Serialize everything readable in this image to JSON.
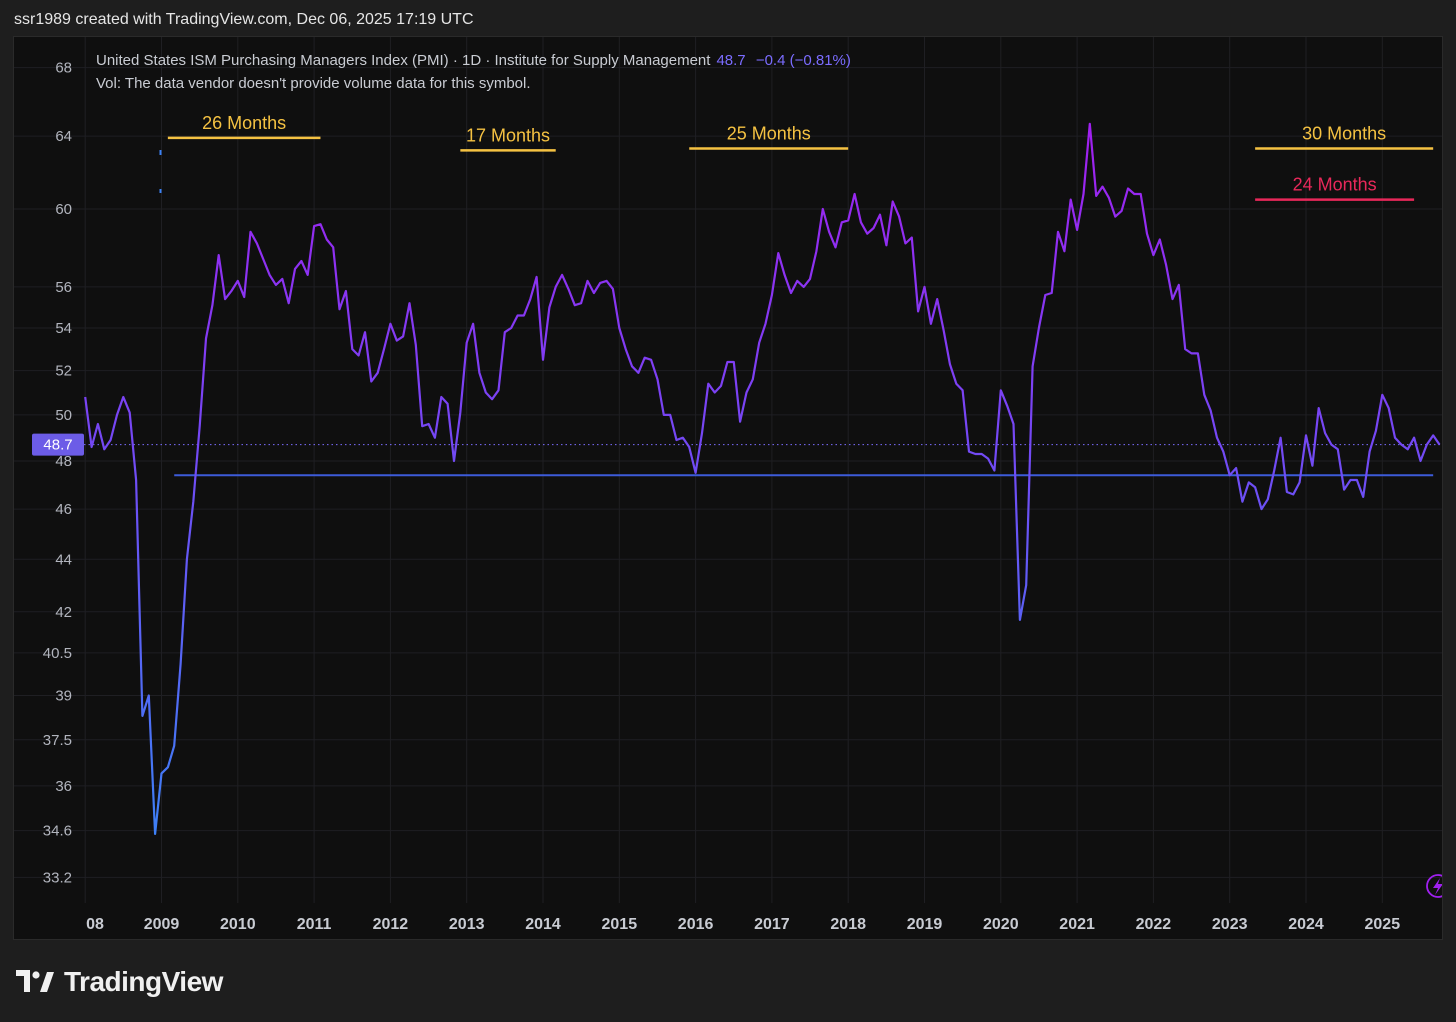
{
  "header": {
    "credit": "ssr1989 created with TradingView.com, Dec 06, 2025 17:19 UTC"
  },
  "legend": {
    "title": "United States ISM Purchasing Managers Index (PMI) · 1D · Institute for Supply Management",
    "last_value": "48.7",
    "change": "−0.4 (−0.81%)",
    "volume_note": "Vol: The data vendor doesn't provide volume data for this symbol."
  },
  "footer": {
    "brand": "TradingView"
  },
  "colors": {
    "background": "#0f0f0f",
    "line_low": "#3b82f6",
    "line_high": "#a020f0",
    "support_line": "#3d5bd9",
    "price_tag": "#6c5ce7",
    "annotation_yellow": "#f5c242",
    "annotation_red": "#e8285a"
  },
  "chart_data": {
    "type": "line",
    "title": "United States ISM Purchasing Managers Index (PMI)",
    "xlabel": "",
    "ylabel": "",
    "scale": "log",
    "ylim": [
      32.2,
      70
    ],
    "x_ticks": [
      "08",
      "2009",
      "2010",
      "2011",
      "2012",
      "2013",
      "2014",
      "2015",
      "2016",
      "2017",
      "2018",
      "2019",
      "2020",
      "2021",
      "2022",
      "2023",
      "2024",
      "2025"
    ],
    "y_ticks": [
      68,
      64,
      60,
      56,
      54,
      52,
      50,
      48,
      46,
      44,
      42,
      40.5,
      39,
      37.5,
      36,
      34.6,
      33.2
    ],
    "last_price_label": "48.7",
    "grid": true,
    "series": [
      {
        "values": [
          [
            "2008-01",
            50.8
          ],
          [
            "2008-02",
            48.6
          ],
          [
            "2008-03",
            49.6
          ],
          [
            "2008-04",
            48.5
          ],
          [
            "2008-05",
            48.9
          ],
          [
            "2008-06",
            50.0
          ],
          [
            "2008-07",
            50.8
          ],
          [
            "2008-08",
            50.1
          ],
          [
            "2008-09",
            47.2
          ],
          [
            "2008-10",
            38.3
          ],
          [
            "2008-11",
            39.0
          ],
          [
            "2008-12",
            34.5
          ],
          [
            "2009-01",
            36.4
          ],
          [
            "2009-02",
            36.6
          ],
          [
            "2009-03",
            37.3
          ],
          [
            "2009-04",
            40.1
          ],
          [
            "2009-05",
            44.0
          ],
          [
            "2009-06",
            46.3
          ],
          [
            "2009-07",
            49.5
          ],
          [
            "2009-08",
            53.5
          ],
          [
            "2009-09",
            55.1
          ],
          [
            "2009-10",
            57.6
          ],
          [
            "2009-11",
            55.4
          ],
          [
            "2009-12",
            55.8
          ],
          [
            "2010-01",
            56.3
          ],
          [
            "2010-02",
            55.5
          ],
          [
            "2010-03",
            58.8
          ],
          [
            "2010-04",
            58.2
          ],
          [
            "2010-05",
            57.4
          ],
          [
            "2010-06",
            56.6
          ],
          [
            "2010-07",
            56.1
          ],
          [
            "2010-08",
            56.4
          ],
          [
            "2010-09",
            55.2
          ],
          [
            "2010-10",
            56.9
          ],
          [
            "2010-11",
            57.3
          ],
          [
            "2010-12",
            56.6
          ],
          [
            "2011-01",
            59.1
          ],
          [
            "2011-02",
            59.2
          ],
          [
            "2011-03",
            58.4
          ],
          [
            "2011-04",
            58.0
          ],
          [
            "2011-05",
            54.9
          ],
          [
            "2011-06",
            55.8
          ],
          [
            "2011-07",
            53.0
          ],
          [
            "2011-08",
            52.7
          ],
          [
            "2011-09",
            53.8
          ],
          [
            "2011-10",
            51.5
          ],
          [
            "2011-11",
            51.9
          ],
          [
            "2011-12",
            53.0
          ],
          [
            "2012-01",
            54.2
          ],
          [
            "2012-02",
            53.4
          ],
          [
            "2012-03",
            53.6
          ],
          [
            "2012-04",
            55.2
          ],
          [
            "2012-05",
            53.2
          ],
          [
            "2012-06",
            49.5
          ],
          [
            "2012-07",
            49.6
          ],
          [
            "2012-08",
            49.0
          ],
          [
            "2012-09",
            50.8
          ],
          [
            "2012-10",
            50.5
          ],
          [
            "2012-11",
            48.0
          ],
          [
            "2012-12",
            50.1
          ],
          [
            "2013-01",
            53.3
          ],
          [
            "2013-02",
            54.2
          ],
          [
            "2013-03",
            51.9
          ],
          [
            "2013-04",
            51.0
          ],
          [
            "2013-05",
            50.7
          ],
          [
            "2013-06",
            51.1
          ],
          [
            "2013-07",
            53.8
          ],
          [
            "2013-08",
            54.0
          ],
          [
            "2013-09",
            54.6
          ],
          [
            "2013-10",
            54.6
          ],
          [
            "2013-11",
            55.4
          ],
          [
            "2013-12",
            56.5
          ],
          [
            "2014-01",
            52.5
          ],
          [
            "2014-02",
            55.0
          ],
          [
            "2014-03",
            56.0
          ],
          [
            "2014-04",
            56.6
          ],
          [
            "2014-05",
            55.9
          ],
          [
            "2014-06",
            55.1
          ],
          [
            "2014-07",
            55.2
          ],
          [
            "2014-08",
            56.3
          ],
          [
            "2014-09",
            55.7
          ],
          [
            "2014-10",
            56.2
          ],
          [
            "2014-11",
            56.3
          ],
          [
            "2014-12",
            55.9
          ],
          [
            "2015-01",
            54.0
          ],
          [
            "2015-02",
            53.0
          ],
          [
            "2015-03",
            52.2
          ],
          [
            "2015-04",
            51.9
          ],
          [
            "2015-05",
            52.6
          ],
          [
            "2015-06",
            52.5
          ],
          [
            "2015-07",
            51.6
          ],
          [
            "2015-08",
            50.0
          ],
          [
            "2015-09",
            50.0
          ],
          [
            "2015-10",
            48.9
          ],
          [
            "2015-11",
            49.0
          ],
          [
            "2015-12",
            48.6
          ],
          [
            "2016-01",
            47.5
          ],
          [
            "2016-02",
            49.2
          ],
          [
            "2016-03",
            51.4
          ],
          [
            "2016-04",
            51.0
          ],
          [
            "2016-05",
            51.3
          ],
          [
            "2016-06",
            52.4
          ],
          [
            "2016-07",
            52.4
          ],
          [
            "2016-08",
            49.7
          ],
          [
            "2016-09",
            51.0
          ],
          [
            "2016-10",
            51.6
          ],
          [
            "2016-11",
            53.3
          ],
          [
            "2016-12",
            54.2
          ],
          [
            "2017-01",
            55.6
          ],
          [
            "2017-02",
            57.7
          ],
          [
            "2017-03",
            56.6
          ],
          [
            "2017-04",
            55.7
          ],
          [
            "2017-05",
            56.3
          ],
          [
            "2017-06",
            56.0
          ],
          [
            "2017-07",
            56.4
          ],
          [
            "2017-08",
            57.8
          ],
          [
            "2017-09",
            60.0
          ],
          [
            "2017-10",
            58.8
          ],
          [
            "2017-11",
            58.0
          ],
          [
            "2017-12",
            59.3
          ],
          [
            "2018-01",
            59.4
          ],
          [
            "2018-02",
            60.8
          ],
          [
            "2018-03",
            59.3
          ],
          [
            "2018-04",
            58.7
          ],
          [
            "2018-05",
            59.0
          ],
          [
            "2018-06",
            59.7
          ],
          [
            "2018-07",
            58.1
          ],
          [
            "2018-08",
            60.4
          ],
          [
            "2018-09",
            59.6
          ],
          [
            "2018-10",
            58.2
          ],
          [
            "2018-11",
            58.5
          ],
          [
            "2018-12",
            54.8
          ],
          [
            "2019-01",
            56.0
          ],
          [
            "2019-02",
            54.2
          ],
          [
            "2019-03",
            55.4
          ],
          [
            "2019-04",
            53.9
          ],
          [
            "2019-05",
            52.3
          ],
          [
            "2019-06",
            51.4
          ],
          [
            "2019-07",
            51.1
          ],
          [
            "2019-08",
            48.4
          ],
          [
            "2019-09",
            48.3
          ],
          [
            "2019-10",
            48.3
          ],
          [
            "2019-11",
            48.1
          ],
          [
            "2019-12",
            47.6
          ],
          [
            "2020-01",
            51.1
          ],
          [
            "2020-02",
            50.4
          ],
          [
            "2020-03",
            49.6
          ],
          [
            "2020-04",
            41.7
          ],
          [
            "2020-05",
            43.0
          ],
          [
            "2020-06",
            52.2
          ],
          [
            "2020-07",
            54.0
          ],
          [
            "2020-08",
            55.6
          ],
          [
            "2020-09",
            55.7
          ],
          [
            "2020-10",
            58.8
          ],
          [
            "2020-11",
            57.8
          ],
          [
            "2020-12",
            60.5
          ],
          [
            "2021-01",
            58.9
          ],
          [
            "2021-02",
            60.8
          ],
          [
            "2021-03",
            64.7
          ],
          [
            "2021-04",
            60.7
          ],
          [
            "2021-05",
            61.2
          ],
          [
            "2021-06",
            60.6
          ],
          [
            "2021-07",
            59.6
          ],
          [
            "2021-08",
            59.9
          ],
          [
            "2021-09",
            61.1
          ],
          [
            "2021-10",
            60.8
          ],
          [
            "2021-11",
            60.8
          ],
          [
            "2021-12",
            58.7
          ],
          [
            "2022-01",
            57.6
          ],
          [
            "2022-02",
            58.4
          ],
          [
            "2022-03",
            57.1
          ],
          [
            "2022-04",
            55.4
          ],
          [
            "2022-05",
            56.1
          ],
          [
            "2022-06",
            53.0
          ],
          [
            "2022-07",
            52.8
          ],
          [
            "2022-08",
            52.8
          ],
          [
            "2022-09",
            50.9
          ],
          [
            "2022-10",
            50.2
          ],
          [
            "2022-11",
            49.0
          ],
          [
            "2022-12",
            48.4
          ],
          [
            "2023-01",
            47.4
          ],
          [
            "2023-02",
            47.7
          ],
          [
            "2023-03",
            46.3
          ],
          [
            "2023-04",
            47.1
          ],
          [
            "2023-05",
            46.9
          ],
          [
            "2023-06",
            46.0
          ],
          [
            "2023-07",
            46.4
          ],
          [
            "2023-08",
            47.6
          ],
          [
            "2023-09",
            49.0
          ],
          [
            "2023-10",
            46.7
          ],
          [
            "2023-11",
            46.6
          ],
          [
            "2023-12",
            47.1
          ],
          [
            "2024-01",
            49.1
          ],
          [
            "2024-02",
            47.8
          ],
          [
            "2024-03",
            50.3
          ],
          [
            "2024-04",
            49.2
          ],
          [
            "2024-05",
            48.7
          ],
          [
            "2024-06",
            48.5
          ],
          [
            "2024-07",
            46.8
          ],
          [
            "2024-08",
            47.2
          ],
          [
            "2024-09",
            47.2
          ],
          [
            "2024-10",
            46.5
          ],
          [
            "2024-11",
            48.4
          ],
          [
            "2024-12",
            49.3
          ],
          [
            "2025-01",
            50.9
          ],
          [
            "2025-02",
            50.3
          ],
          [
            "2025-03",
            49.0
          ],
          [
            "2025-04",
            48.7
          ],
          [
            "2025-05",
            48.5
          ],
          [
            "2025-06",
            49.0
          ],
          [
            "2025-07",
            48.0
          ],
          [
            "2025-08",
            48.7
          ],
          [
            "2025-09",
            49.1
          ],
          [
            "2025-10",
            48.7
          ]
        ]
      }
    ],
    "reference_lines": [
      {
        "kind": "horizontal",
        "from": "2009-03",
        "to": "2025-09",
        "value": 47.4
      },
      {
        "kind": "horizontal-dotted",
        "value": 48.7
      }
    ],
    "annotations": [
      {
        "text": "26 Months",
        "color": "yellow",
        "from": "2009-02",
        "to": "2011-02",
        "value": 63.9
      },
      {
        "text": "17 Months",
        "color": "yellow",
        "from": "2012-12",
        "to": "2014-03",
        "value": 63.2
      },
      {
        "text": "25 Months",
        "color": "yellow",
        "from": "2015-12",
        "to": "2018-01",
        "value": 63.3
      },
      {
        "text": "30 Months",
        "color": "yellow",
        "from": "2023-05",
        "to": "2025-09",
        "value": 63.3
      },
      {
        "text": "24 Months",
        "color": "red",
        "from": "2023-05",
        "to": "2025-06",
        "value": 60.5
      }
    ]
  }
}
